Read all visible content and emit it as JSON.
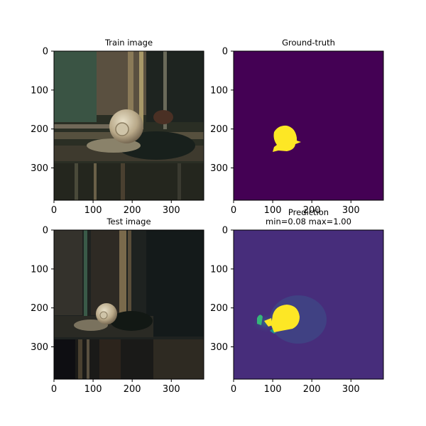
{
  "chart_data": [
    {
      "type": "image",
      "title_lines": [
        "Train image"
      ],
      "content": "photo",
      "xlim": [
        0,
        383
      ],
      "ylim": [
        383,
        0
      ],
      "xticks": [
        0,
        100,
        200,
        300
      ],
      "yticks": [
        0,
        100,
        200,
        300
      ]
    },
    {
      "type": "heatmap",
      "title_lines": [
        "Ground-truth"
      ],
      "content": "mask",
      "colormap": "viridis",
      "background_color": "#440154",
      "highlight_color": "#fde725",
      "xlim": [
        0,
        383
      ],
      "ylim": [
        383,
        0
      ],
      "xticks": [
        0,
        100,
        200,
        300
      ],
      "yticks": [
        0,
        100,
        200,
        300
      ]
    },
    {
      "type": "image",
      "title_lines": [
        "Test image"
      ],
      "content": "photo",
      "xlim": [
        0,
        383
      ],
      "ylim": [
        383,
        0
      ],
      "xticks": [
        0,
        100,
        200,
        300
      ],
      "yticks": [
        0,
        100,
        200,
        300
      ]
    },
    {
      "type": "heatmap",
      "title_lines": [
        "Prediction",
        "min=0.08 max=1.00"
      ],
      "content": "prediction",
      "colormap": "viridis",
      "value_min": 0.08,
      "value_max": 1.0,
      "background_color": "#472d7b",
      "highlight_color": "#fde725",
      "xlim": [
        0,
        383
      ],
      "ylim": [
        383,
        0
      ],
      "xticks": [
        0,
        100,
        200,
        300
      ],
      "yticks": [
        0,
        100,
        200,
        300
      ]
    }
  ]
}
